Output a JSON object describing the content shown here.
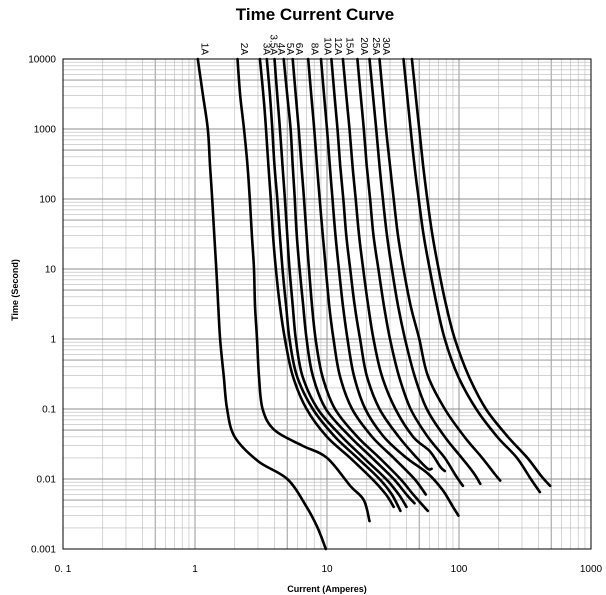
{
  "chart_data": {
    "type": "line",
    "title": "Time Current Curve",
    "xlabel": "Current  (Amperes)",
    "ylabel": "Time (Second)",
    "xscale": "log",
    "yscale": "log",
    "xlim": [
      0.1,
      1000
    ],
    "ylim": [
      0.001,
      10000
    ],
    "x_tick_labels": [
      "0. 1",
      "1",
      "10",
      "100",
      "1000"
    ],
    "y_tick_labels": [
      "0.001",
      "0.01",
      "0.1",
      "1",
      "10",
      "100",
      "1000",
      "10000"
    ],
    "grid": true,
    "series": [
      {
        "name": "1A",
        "points": [
          [
            1.05,
            10000
          ],
          [
            1.15,
            3000
          ],
          [
            1.25,
            1000
          ],
          [
            1.3,
            300
          ],
          [
            1.35,
            100
          ],
          [
            1.4,
            30
          ],
          [
            1.45,
            10
          ],
          [
            1.5,
            3
          ],
          [
            1.55,
            1
          ],
          [
            1.65,
            0.3
          ],
          [
            1.75,
            0.1
          ],
          [
            2.0,
            0.04
          ],
          [
            3.0,
            0.018
          ],
          [
            5.0,
            0.01
          ],
          [
            7.0,
            0.004
          ],
          [
            8.5,
            0.002
          ],
          [
            9.8,
            0.001
          ]
        ]
      },
      {
        "name": "2A",
        "points": [
          [
            2.1,
            10000
          ],
          [
            2.2,
            3000
          ],
          [
            2.35,
            1000
          ],
          [
            2.5,
            300
          ],
          [
            2.6,
            100
          ],
          [
            2.7,
            30
          ],
          [
            2.8,
            10
          ],
          [
            2.85,
            3
          ],
          [
            2.95,
            1
          ],
          [
            3.05,
            0.3
          ],
          [
            3.25,
            0.1
          ],
          [
            4.0,
            0.05
          ],
          [
            6.5,
            0.03
          ],
          [
            10,
            0.02
          ],
          [
            15,
            0.008
          ],
          [
            19,
            0.005
          ],
          [
            21,
            0.0025
          ]
        ]
      },
      {
        "name": "3A",
        "points": [
          [
            3.1,
            10000
          ],
          [
            3.3,
            3000
          ],
          [
            3.45,
            1000
          ],
          [
            3.6,
            300
          ],
          [
            3.75,
            100
          ],
          [
            3.9,
            30
          ],
          [
            4.1,
            10
          ],
          [
            4.4,
            3
          ],
          [
            4.8,
            1
          ],
          [
            5.5,
            0.3
          ],
          [
            7.0,
            0.1
          ],
          [
            10,
            0.04
          ],
          [
            15,
            0.02
          ],
          [
            22,
            0.01
          ],
          [
            28,
            0.006
          ],
          [
            32,
            0.004
          ]
        ]
      },
      {
        "name": "3.5A",
        "points": [
          [
            3.5,
            10000
          ],
          [
            3.7,
            3000
          ],
          [
            3.85,
            1000
          ],
          [
            4.0,
            300
          ],
          [
            4.2,
            100
          ],
          [
            4.4,
            30
          ],
          [
            4.6,
            10
          ],
          [
            4.9,
            3
          ],
          [
            5.2,
            1
          ],
          [
            5.9,
            0.3
          ],
          [
            7.8,
            0.1
          ],
          [
            11.5,
            0.04
          ],
          [
            17,
            0.02
          ],
          [
            25,
            0.01
          ],
          [
            31,
            0.006
          ],
          [
            36,
            0.0035
          ]
        ]
      },
      {
        "name": "4A",
        "points": [
          [
            4.0,
            10000
          ],
          [
            4.2,
            3000
          ],
          [
            4.4,
            1000
          ],
          [
            4.6,
            300
          ],
          [
            4.8,
            100
          ],
          [
            5.0,
            30
          ],
          [
            5.2,
            10
          ],
          [
            5.5,
            3
          ],
          [
            5.8,
            1
          ],
          [
            6.5,
            0.3
          ],
          [
            8.5,
            0.1
          ],
          [
            13,
            0.04
          ],
          [
            19,
            0.02
          ],
          [
            28,
            0.01
          ],
          [
            35,
            0.006
          ],
          [
            40,
            0.004
          ]
        ]
      },
      {
        "name": "5A",
        "points": [
          [
            4.7,
            10000
          ],
          [
            5.0,
            3000
          ],
          [
            5.3,
            1000
          ],
          [
            5.5,
            300
          ],
          [
            5.7,
            100
          ],
          [
            5.9,
            30
          ],
          [
            6.2,
            10
          ],
          [
            6.6,
            3
          ],
          [
            7.0,
            1
          ],
          [
            7.8,
            0.3
          ],
          [
            9.8,
            0.1
          ],
          [
            15,
            0.04
          ],
          [
            22,
            0.02
          ],
          [
            32,
            0.01
          ],
          [
            40,
            0.006
          ],
          [
            46,
            0.0045
          ]
        ]
      },
      {
        "name": "6A",
        "points": [
          [
            5.5,
            10000
          ],
          [
            5.8,
            3000
          ],
          [
            6.1,
            1000
          ],
          [
            6.4,
            300
          ],
          [
            6.7,
            100
          ],
          [
            7.0,
            30
          ],
          [
            7.3,
            10
          ],
          [
            7.7,
            3
          ],
          [
            8.2,
            1
          ],
          [
            9.2,
            0.3
          ],
          [
            11.5,
            0.1
          ],
          [
            17,
            0.04
          ],
          [
            25,
            0.02
          ],
          [
            36,
            0.01
          ],
          [
            45,
            0.006
          ],
          [
            58,
            0.0035
          ]
        ]
      },
      {
        "name": "8A",
        "points": [
          [
            7.2,
            10000
          ],
          [
            7.6,
            3000
          ],
          [
            8.0,
            1000
          ],
          [
            8.4,
            300
          ],
          [
            8.8,
            100
          ],
          [
            9.3,
            30
          ],
          [
            9.8,
            10
          ],
          [
            10.4,
            3
          ],
          [
            11.2,
            1
          ],
          [
            12.5,
            0.3
          ],
          [
            15.5,
            0.1
          ],
          [
            22,
            0.04
          ],
          [
            32,
            0.02
          ],
          [
            46,
            0.01
          ],
          [
            56,
            0.006
          ]
        ]
      },
      {
        "name": "10A",
        "points": [
          [
            9.0,
            10000
          ],
          [
            9.5,
            3000
          ],
          [
            10,
            1000
          ],
          [
            10.5,
            300
          ],
          [
            11,
            100
          ],
          [
            11.6,
            30
          ],
          [
            12.3,
            10
          ],
          [
            13.2,
            3
          ],
          [
            14.3,
            1
          ],
          [
            16,
            0.3
          ],
          [
            19.5,
            0.1
          ],
          [
            27,
            0.04
          ],
          [
            40,
            0.02
          ],
          [
            58,
            0.012
          ],
          [
            75,
            0.007
          ],
          [
            90,
            0.004
          ],
          [
            99,
            0.003
          ]
        ]
      },
      {
        "name": "12A",
        "points": [
          [
            10.8,
            10000
          ],
          [
            11.4,
            3000
          ],
          [
            12,
            1000
          ],
          [
            12.6,
            300
          ],
          [
            13.3,
            100
          ],
          [
            14,
            30
          ],
          [
            15,
            10
          ],
          [
            16.2,
            3
          ],
          [
            17.8,
            1
          ],
          [
            20,
            0.3
          ],
          [
            25,
            0.1
          ],
          [
            35,
            0.04
          ],
          [
            48,
            0.02
          ],
          [
            58,
            0.014
          ],
          [
            62,
            0.014
          ]
        ]
      },
      {
        "name": "15A",
        "points": [
          [
            13.2,
            10000
          ],
          [
            14,
            3000
          ],
          [
            14.8,
            1000
          ],
          [
            15.6,
            300
          ],
          [
            16.5,
            100
          ],
          [
            17.5,
            30
          ],
          [
            18.8,
            10
          ],
          [
            20.5,
            3
          ],
          [
            22.5,
            1
          ],
          [
            26,
            0.3
          ],
          [
            33,
            0.1
          ],
          [
            45,
            0.04
          ],
          [
            60,
            0.025
          ],
          [
            72,
            0.015
          ],
          [
            78,
            0.013
          ]
        ]
      },
      {
        "name": "20A",
        "points": [
          [
            17,
            10000
          ],
          [
            18,
            3000
          ],
          [
            19,
            1000
          ],
          [
            20,
            300
          ],
          [
            21.2,
            100
          ],
          [
            22.5,
            30
          ],
          [
            24.5,
            10
          ],
          [
            27,
            3
          ],
          [
            30,
            1
          ],
          [
            35,
            0.3
          ],
          [
            43,
            0.1
          ],
          [
            58,
            0.04
          ],
          [
            78,
            0.02
          ],
          [
            95,
            0.011
          ],
          [
            107,
            0.008
          ]
        ]
      },
      {
        "name": "25A",
        "points": [
          [
            21,
            10000
          ],
          [
            22.3,
            3000
          ],
          [
            23.6,
            1000
          ],
          [
            25,
            300
          ],
          [
            26.5,
            100
          ],
          [
            28.5,
            30
          ],
          [
            31,
            10
          ],
          [
            34.5,
            3
          ],
          [
            39,
            1
          ],
          [
            46,
            0.3
          ],
          [
            57,
            0.1
          ],
          [
            78,
            0.04
          ],
          [
            105,
            0.02
          ],
          [
            130,
            0.012
          ],
          [
            145,
            0.0085
          ]
        ]
      },
      {
        "name": "30A",
        "points": [
          [
            25,
            10000
          ],
          [
            26.5,
            3000
          ],
          [
            28,
            1000
          ],
          [
            30,
            300
          ],
          [
            32,
            100
          ],
          [
            34.5,
            30
          ],
          [
            38,
            10
          ],
          [
            43,
            3
          ],
          [
            50,
            1
          ],
          [
            58,
            0.3
          ],
          [
            78,
            0.1
          ],
          [
            110,
            0.04
          ],
          [
            150,
            0.02
          ],
          [
            185,
            0.012
          ],
          [
            205,
            0.0095
          ]
        ]
      },
      {
        "name": "",
        "points": [
          [
            38,
            10000
          ],
          [
            40.5,
            3000
          ],
          [
            43,
            1000
          ],
          [
            46,
            300
          ],
          [
            49.5,
            100
          ],
          [
            54,
            30
          ],
          [
            60,
            10
          ],
          [
            68,
            3
          ],
          [
            78,
            1
          ],
          [
            98,
            0.3
          ],
          [
            135,
            0.1
          ],
          [
            195,
            0.04
          ],
          [
            275,
            0.02
          ],
          [
            350,
            0.01
          ],
          [
            410,
            0.0065
          ]
        ]
      },
      {
        "name": "",
        "points": [
          [
            44,
            10000
          ],
          [
            47,
            3000
          ],
          [
            50,
            1000
          ],
          [
            53.5,
            300
          ],
          [
            57.5,
            100
          ],
          [
            63,
            30
          ],
          [
            70,
            10
          ],
          [
            80,
            3
          ],
          [
            93,
            1
          ],
          [
            118,
            0.3
          ],
          [
            160,
            0.1
          ],
          [
            235,
            0.04
          ],
          [
            330,
            0.02
          ],
          [
            420,
            0.011
          ],
          [
            490,
            0.008
          ]
        ]
      }
    ]
  }
}
